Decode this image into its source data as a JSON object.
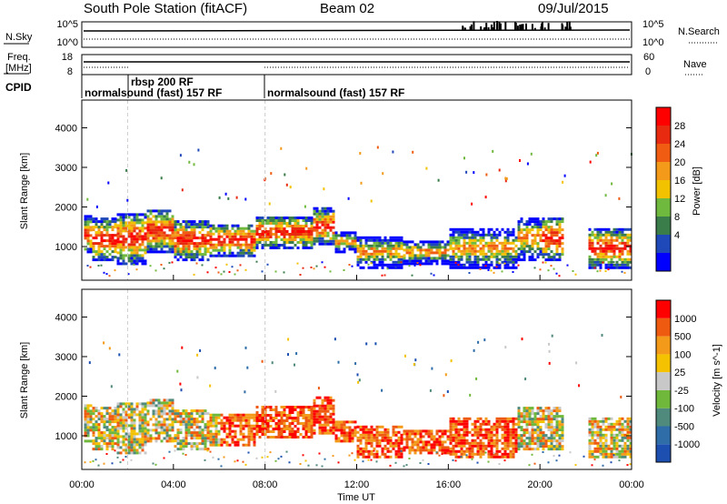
{
  "header": {
    "station": "South Pole Station (fitACF)",
    "beam": "Beam 02",
    "date": "09/Jul/2015"
  },
  "aux": {
    "nsky_label": "N.Sky",
    "nsky_ticks": [
      "10^5",
      "10^0"
    ],
    "nsearch_label": "N.Search",
    "nsearch_ticks": [
      "10^5",
      "10^0"
    ],
    "freq_label_1": "Freq.",
    "freq_label_2": "[MHz]",
    "freq_ticks": [
      "18",
      "8"
    ],
    "nave_label": "Nave",
    "nave_ticks": [
      "60",
      "0"
    ],
    "cpid_label": "CPID",
    "cpid_segments": [
      "normalsound (fast) 157 RF",
      "rbsp 200 RF",
      "normalsound (fast) 157 RF"
    ]
  },
  "chart_data": [
    {
      "type": "heatmap",
      "name": "power",
      "ylabel": "Slant Range [km]",
      "y_ticks": [
        "4000",
        "3000",
        "2000",
        "1000"
      ],
      "ylim": [
        150,
        4700
      ],
      "colorbar_label": "Power [dB]",
      "colorbar_ticks": [
        "28",
        "24",
        "20",
        "16",
        "12",
        "8",
        "4"
      ],
      "colors": [
        "#0000ff",
        "#1f48b8",
        "#3a7c4a",
        "#6fba3e",
        "#f2c200",
        "#f39a1a",
        "#ef5c12",
        "#e82a10",
        "#ff0000"
      ],
      "xlim_hours": [
        0,
        24
      ]
    },
    {
      "type": "heatmap",
      "name": "velocity",
      "ylabel": "Slant Range [km]",
      "y_ticks": [
        "4000",
        "3000",
        "2000",
        "1000"
      ],
      "ylim": [
        150,
        4700
      ],
      "colorbar_label": "Velocity [m s^-1]",
      "colorbar_ticks": [
        "1000",
        "500",
        "100",
        "25",
        "-25",
        "-100",
        "-500",
        "-1000"
      ],
      "colors": [
        "#1c4fb0",
        "#2e6da8",
        "#4f8a7c",
        "#6fb83c",
        "#c8c8c8",
        "#f4c200",
        "#f39a1a",
        "#ee5a10",
        "#ff0000"
      ],
      "xlabel": "Time UT",
      "x_ticks": [
        "00:00",
        "04:00",
        "08:00",
        "12:00",
        "16:00",
        "20:00",
        "00:00"
      ],
      "xlim_hours": [
        0,
        24
      ]
    }
  ]
}
